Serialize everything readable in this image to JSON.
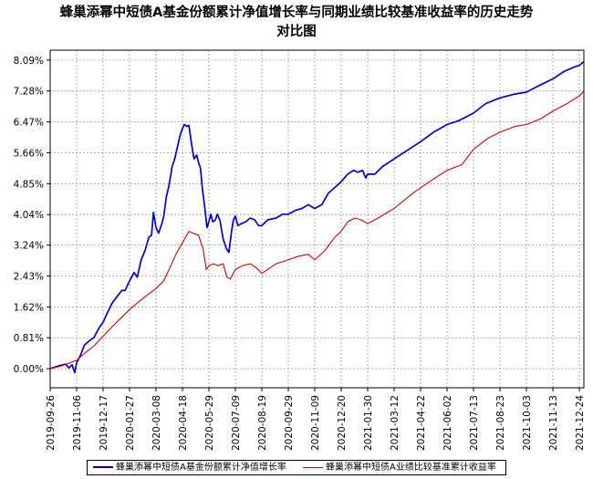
{
  "chart_data": {
    "type": "line",
    "title": "蜂巢添幂中短债A基金份额累计净值增长率与同期业绩比较基准收益率的历史走势对比图",
    "title_lines": [
      "蜂巢添幂中短债A基金份额累计净值增长率与同期业绩比较基准收益率的历史走势",
      "对比图"
    ],
    "y_ticks": [
      "0.00%",
      "0.81%",
      "1.62%",
      "2.43%",
      "3.24%",
      "4.04%",
      "4.85%",
      "5.66%",
      "6.47%",
      "7.28%",
      "8.09%"
    ],
    "ylim": [
      -0.5,
      8.35
    ],
    "x_ticks": [
      "2019-09-26",
      "2019-11-06",
      "2019-12-17",
      "2020-01-27",
      "2020-03-08",
      "2020-04-18",
      "2020-05-29",
      "2020-07-09",
      "2020-08-19",
      "2020-09-29",
      "2020-11-09",
      "2020-12-20",
      "2021-01-30",
      "2021-03-12",
      "2021-04-22",
      "2021-06-02",
      "2021-07-13",
      "2021-08-23",
      "2021-10-03",
      "2021-11-13",
      "2021-12-24"
    ],
    "x_range": [
      "2019-09-26",
      "2021-12-31"
    ],
    "grid": true,
    "legend_position": "bottom",
    "colors": {
      "fund": "#0000cc",
      "benchmark": "#cc0000"
    },
    "series": [
      {
        "name": "蜂巢添幂中短债A基金份额累计净值增长率",
        "points": [
          [
            "2019-09-26",
            0.0
          ],
          [
            "2019-10-10",
            0.08
          ],
          [
            "2019-10-20",
            0.12
          ],
          [
            "2019-10-25",
            0.02
          ],
          [
            "2019-10-30",
            0.1
          ],
          [
            "2019-11-03",
            -0.1
          ],
          [
            "2019-11-06",
            0.15
          ],
          [
            "2019-11-12",
            0.35
          ],
          [
            "2019-11-18",
            0.62
          ],
          [
            "2019-11-25",
            0.72
          ],
          [
            "2019-12-03",
            0.82
          ],
          [
            "2019-12-10",
            1.05
          ],
          [
            "2019-12-17",
            1.22
          ],
          [
            "2019-12-24",
            1.48
          ],
          [
            "2019-12-31",
            1.72
          ],
          [
            "2020-01-08",
            1.9
          ],
          [
            "2020-01-15",
            2.05
          ],
          [
            "2020-01-20",
            2.05
          ],
          [
            "2020-01-27",
            2.3
          ],
          [
            "2020-02-03",
            2.52
          ],
          [
            "2020-02-08",
            2.4
          ],
          [
            "2020-02-14",
            2.85
          ],
          [
            "2020-02-20",
            3.1
          ],
          [
            "2020-02-26",
            3.45
          ],
          [
            "2020-03-01",
            3.5
          ],
          [
            "2020-03-04",
            4.1
          ],
          [
            "2020-03-08",
            3.7
          ],
          [
            "2020-03-12",
            3.55
          ],
          [
            "2020-03-17",
            3.8
          ],
          [
            "2020-03-20",
            4.0
          ],
          [
            "2020-03-24",
            4.5
          ],
          [
            "2020-03-28",
            4.8
          ],
          [
            "2020-04-02",
            5.3
          ],
          [
            "2020-04-06",
            5.5
          ],
          [
            "2020-04-10",
            5.8
          ],
          [
            "2020-04-14",
            6.1
          ],
          [
            "2020-04-18",
            6.3
          ],
          [
            "2020-04-21",
            6.4
          ],
          [
            "2020-04-25",
            6.35
          ],
          [
            "2020-04-28",
            6.38
          ],
          [
            "2020-05-02",
            5.9
          ],
          [
            "2020-05-06",
            5.5
          ],
          [
            "2020-05-10",
            5.6
          ],
          [
            "2020-05-13",
            5.4
          ],
          [
            "2020-05-16",
            5.25
          ],
          [
            "2020-05-19",
            4.7
          ],
          [
            "2020-05-22",
            4.3
          ],
          [
            "2020-05-26",
            3.7
          ],
          [
            "2020-05-29",
            3.85
          ],
          [
            "2020-06-01",
            4.05
          ],
          [
            "2020-06-04",
            3.85
          ],
          [
            "2020-06-08",
            3.9
          ],
          [
            "2020-06-11",
            4.05
          ],
          [
            "2020-06-15",
            3.9
          ],
          [
            "2020-06-20",
            3.4
          ],
          [
            "2020-06-25",
            3.15
          ],
          [
            "2020-06-29",
            3.05
          ],
          [
            "2020-07-03",
            3.6
          ],
          [
            "2020-07-06",
            3.9
          ],
          [
            "2020-07-09",
            4.0
          ],
          [
            "2020-07-13",
            3.75
          ],
          [
            "2020-07-18",
            3.8
          ],
          [
            "2020-07-25",
            3.85
          ],
          [
            "2020-08-01",
            3.95
          ],
          [
            "2020-08-08",
            3.9
          ],
          [
            "2020-08-14",
            3.75
          ],
          [
            "2020-08-19",
            3.75
          ],
          [
            "2020-08-28",
            3.9
          ],
          [
            "2020-09-10",
            3.95
          ],
          [
            "2020-09-20",
            4.05
          ],
          [
            "2020-09-29",
            4.05
          ],
          [
            "2020-10-10",
            4.15
          ],
          [
            "2020-10-20",
            4.2
          ],
          [
            "2020-10-30",
            4.3
          ],
          [
            "2020-11-09",
            4.2
          ],
          [
            "2020-11-20",
            4.3
          ],
          [
            "2020-11-30",
            4.6
          ],
          [
            "2020-12-10",
            4.75
          ],
          [
            "2020-12-20",
            4.9
          ],
          [
            "2020-12-30",
            5.1
          ],
          [
            "2021-01-08",
            5.2
          ],
          [
            "2021-01-15",
            5.15
          ],
          [
            "2021-01-22",
            5.2
          ],
          [
            "2021-01-27",
            5.0
          ],
          [
            "2021-01-30",
            5.1
          ],
          [
            "2021-02-10",
            5.1
          ],
          [
            "2021-02-22",
            5.3
          ],
          [
            "2021-03-12",
            5.5
          ],
          [
            "2021-03-30",
            5.7
          ],
          [
            "2021-04-22",
            5.95
          ],
          [
            "2021-05-12",
            6.2
          ],
          [
            "2021-06-02",
            6.4
          ],
          [
            "2021-06-20",
            6.5
          ],
          [
            "2021-07-13",
            6.7
          ],
          [
            "2021-08-01",
            6.95
          ],
          [
            "2021-08-23",
            7.1
          ],
          [
            "2021-09-15",
            7.2
          ],
          [
            "2021-10-03",
            7.25
          ],
          [
            "2021-10-20",
            7.4
          ],
          [
            "2021-11-13",
            7.6
          ],
          [
            "2021-12-01",
            7.8
          ],
          [
            "2021-12-15",
            7.9
          ],
          [
            "2021-12-24",
            7.95
          ],
          [
            "2021-12-31",
            8.05
          ]
        ]
      },
      {
        "name": "蜂巢添幂中短债A业绩比较基准累计收益率",
        "points": [
          [
            "2019-09-26",
            0.0
          ],
          [
            "2019-10-15",
            0.08
          ],
          [
            "2019-10-30",
            0.18
          ],
          [
            "2019-11-06",
            0.22
          ],
          [
            "2019-11-18",
            0.4
          ],
          [
            "2019-12-03",
            0.6
          ],
          [
            "2019-12-17",
            0.85
          ],
          [
            "2019-12-31",
            1.1
          ],
          [
            "2020-01-15",
            1.35
          ],
          [
            "2020-01-27",
            1.55
          ],
          [
            "2020-02-10",
            1.75
          ],
          [
            "2020-02-25",
            1.95
          ],
          [
            "2020-03-08",
            2.1
          ],
          [
            "2020-03-20",
            2.3
          ],
          [
            "2020-03-31",
            2.7
          ],
          [
            "2020-04-08",
            3.0
          ],
          [
            "2020-04-18",
            3.3
          ],
          [
            "2020-04-28",
            3.6
          ],
          [
            "2020-05-05",
            3.55
          ],
          [
            "2020-05-13",
            3.5
          ],
          [
            "2020-05-20",
            3.15
          ],
          [
            "2020-05-25",
            2.6
          ],
          [
            "2020-05-29",
            2.7
          ],
          [
            "2020-06-05",
            2.75
          ],
          [
            "2020-06-12",
            2.7
          ],
          [
            "2020-06-20",
            2.75
          ],
          [
            "2020-06-26",
            2.4
          ],
          [
            "2020-07-01",
            2.35
          ],
          [
            "2020-07-09",
            2.6
          ],
          [
            "2020-07-20",
            2.7
          ],
          [
            "2020-08-01",
            2.75
          ],
          [
            "2020-08-10",
            2.65
          ],
          [
            "2020-08-19",
            2.5
          ],
          [
            "2020-08-28",
            2.6
          ],
          [
            "2020-09-10",
            2.75
          ],
          [
            "2020-09-29",
            2.85
          ],
          [
            "2020-10-15",
            2.95
          ],
          [
            "2020-10-30",
            3.0
          ],
          [
            "2020-11-09",
            2.85
          ],
          [
            "2020-11-25",
            3.1
          ],
          [
            "2020-12-10",
            3.45
          ],
          [
            "2020-12-20",
            3.6
          ],
          [
            "2020-12-30",
            3.85
          ],
          [
            "2021-01-10",
            3.95
          ],
          [
            "2021-01-20",
            3.9
          ],
          [
            "2021-01-30",
            3.8
          ],
          [
            "2021-02-15",
            3.95
          ],
          [
            "2021-03-12",
            4.2
          ],
          [
            "2021-04-10",
            4.6
          ],
          [
            "2021-05-10",
            4.95
          ],
          [
            "2021-06-02",
            5.2
          ],
          [
            "2021-06-25",
            5.35
          ],
          [
            "2021-07-13",
            5.75
          ],
          [
            "2021-08-05",
            6.05
          ],
          [
            "2021-08-23",
            6.2
          ],
          [
            "2021-09-15",
            6.35
          ],
          [
            "2021-10-03",
            6.4
          ],
          [
            "2021-10-25",
            6.55
          ],
          [
            "2021-11-13",
            6.75
          ],
          [
            "2021-12-05",
            6.95
          ],
          [
            "2021-12-24",
            7.15
          ],
          [
            "2021-12-31",
            7.28
          ]
        ]
      }
    ]
  }
}
